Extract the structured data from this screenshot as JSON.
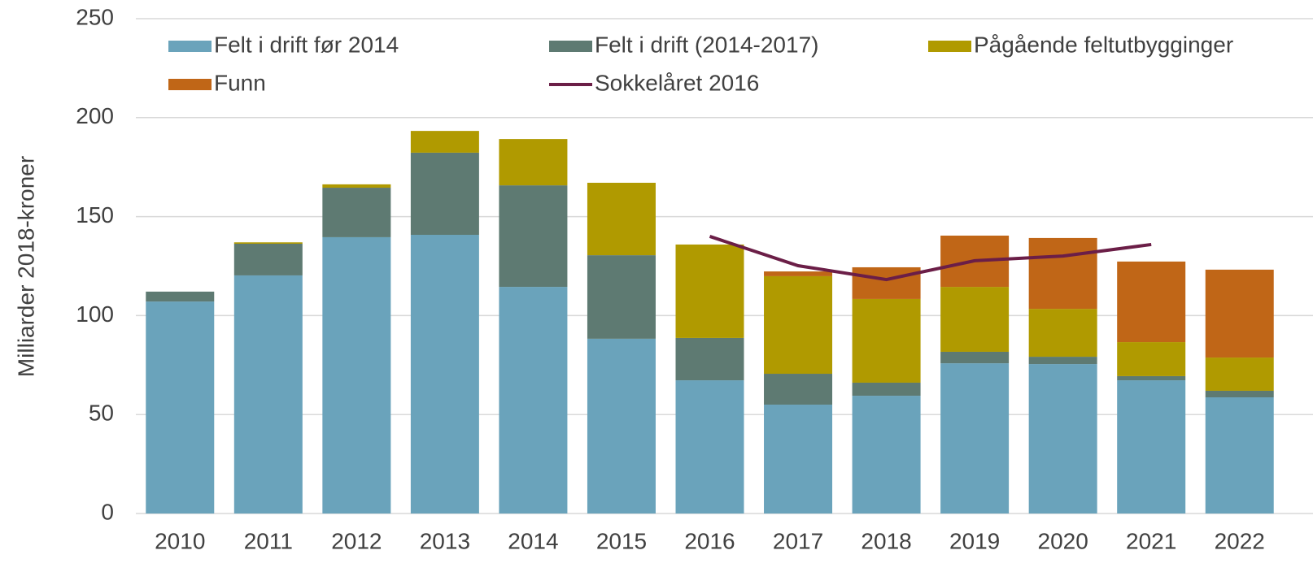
{
  "chart_data": {
    "type": "bar",
    "stacked": true,
    "y_label": "Milliarder 2018-kroner",
    "categories": [
      "2010",
      "2011",
      "2012",
      "2013",
      "2014",
      "2015",
      "2016",
      "2017",
      "2018",
      "2019",
      "2020",
      "2021",
      "2022"
    ],
    "series": [
      {
        "name": "Felt i drift før 2014",
        "color": "#6aa3bb",
        "values": [
          107.1,
          120.3,
          139.6,
          140.8,
          114.5,
          88.3,
          67.3,
          55,
          59.5,
          75.9,
          75.5,
          67.3,
          58.7
        ]
      },
      {
        "name": "Felt i drift (2014-2017)",
        "color": "#5e7a72",
        "values": [
          5,
          16,
          25,
          41.5,
          51.3,
          42.2,
          21.4,
          15.6,
          6.6,
          5.8,
          3.7,
          2.1,
          3.3
        ]
      },
      {
        "name": "Pågående feltutbygginger",
        "color": "#b09a00",
        "values": [
          0,
          0.7,
          1.7,
          11,
          23.4,
          36.6,
          47.2,
          49.3,
          42.3,
          32.8,
          24.2,
          17.2,
          16.8
        ]
      },
      {
        "name": "Funn",
        "color": "#c06617",
        "values": [
          0,
          0,
          0,
          0,
          0,
          0,
          0,
          2.4,
          16,
          25.9,
          35.8,
          40.7,
          44.4
        ]
      },
      {
        "name": "Sokkelåret 2016",
        "color": "#6b1e47",
        "type": "line",
        "values": [
          null,
          null,
          null,
          null,
          null,
          null,
          140,
          125.2,
          118.2,
          127.7,
          130.1,
          135.9,
          null
        ]
      }
    ],
    "ylim": [
      0,
      250
    ],
    "yticks": [
      0,
      50,
      100,
      150,
      200,
      250
    ],
    "grid": true,
    "legend": "top"
  }
}
